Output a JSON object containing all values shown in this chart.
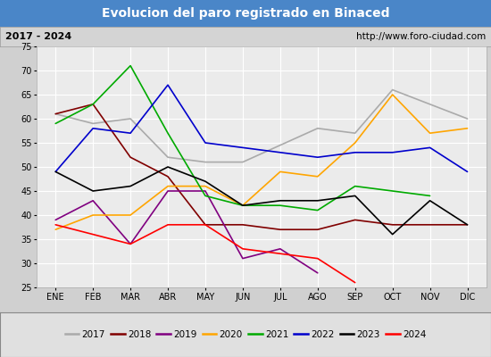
{
  "title": "Evolucion del paro registrado en Binaced",
  "subtitle_left": "2017 - 2024",
  "subtitle_right": "http://www.foro-ciudad.com",
  "months": [
    "ENE",
    "FEB",
    "MAR",
    "ABR",
    "MAY",
    "JUN",
    "JUL",
    "AGO",
    "SEP",
    "OCT",
    "NOV",
    "DIC"
  ],
  "ylim": [
    25,
    75
  ],
  "yticks": [
    25,
    30,
    35,
    40,
    45,
    50,
    55,
    60,
    65,
    70,
    75
  ],
  "series": {
    "2017": {
      "color": "#aaaaaa",
      "data": [
        61,
        59,
        60,
        52,
        51,
        51,
        null,
        58,
        57,
        66,
        63,
        60
      ]
    },
    "2018": {
      "color": "#800000",
      "data": [
        61,
        63,
        52,
        48,
        38,
        38,
        37,
        37,
        39,
        38,
        38,
        38
      ]
    },
    "2019": {
      "color": "#800080",
      "data": [
        39,
        43,
        34,
        45,
        45,
        31,
        33,
        28,
        null,
        null,
        null,
        null
      ]
    },
    "2020": {
      "color": "#ffa500",
      "data": [
        37,
        40,
        40,
        46,
        46,
        42,
        49,
        48,
        55,
        65,
        57,
        58
      ]
    },
    "2021": {
      "color": "#00aa00",
      "data": [
        59,
        63,
        71,
        57,
        44,
        42,
        42,
        41,
        46,
        45,
        44,
        null
      ]
    },
    "2022": {
      "color": "#0000cc",
      "data": [
        49,
        58,
        57,
        67,
        55,
        54,
        53,
        52,
        53,
        53,
        54,
        49
      ]
    },
    "2023": {
      "color": "#000000",
      "data": [
        49,
        45,
        46,
        50,
        47,
        42,
        43,
        43,
        44,
        36,
        43,
        38
      ]
    },
    "2024": {
      "color": "#ff0000",
      "data": [
        38,
        36,
        34,
        38,
        38,
        33,
        32,
        31,
        26,
        null,
        null,
        null
      ]
    }
  },
  "title_bg": "#4a86c8",
  "title_color": "#ffffff",
  "subtitle_bg": "#d4d4d4",
  "subtitle_color": "#000000",
  "plot_bg": "#ebebeb",
  "grid_color": "#ffffff",
  "legend_bg": "#e0e0e0",
  "fig_bg": "#d0d0d0"
}
